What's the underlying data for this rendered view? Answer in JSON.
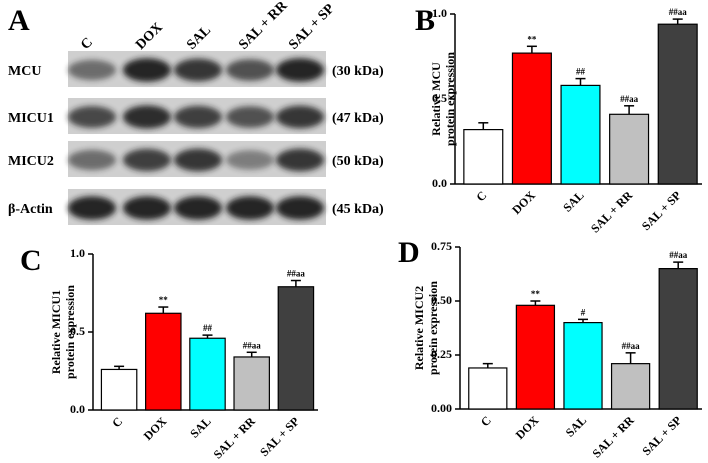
{
  "blot": {
    "panel_label": "A",
    "lanes": [
      "C",
      "DOX",
      "SAL",
      "SAL + RR",
      "SAL + SP"
    ],
    "rows": [
      {
        "name": "MCU",
        "size": "(30 kDa)"
      },
      {
        "name": "MICU1",
        "size": "(47 kDa)"
      },
      {
        "name": "MICU2",
        "size": "(50 kDa)"
      },
      {
        "name": "β-Actin",
        "size": "(45 kDa)"
      }
    ]
  },
  "chart_data": [
    {
      "type": "bar",
      "panel_label": "B",
      "ylabel": [
        "Relative MCU",
        "protein expression"
      ],
      "categories": [
        "C",
        "DOX",
        "SAL",
        "SAL + RR",
        "SAL + SP"
      ],
      "values": [
        0.32,
        0.77,
        0.58,
        0.41,
        0.94
      ],
      "errors": [
        0.04,
        0.04,
        0.04,
        0.05,
        0.03
      ],
      "annotations": [
        null,
        "**",
        "##",
        "##aa",
        "##aa"
      ],
      "colors": [
        "#ffffff",
        "#ff0000",
        "#00ffff",
        "#c0c0c0",
        "#404040"
      ],
      "ylim": [
        0,
        1
      ],
      "yticks": [
        {
          "value": 0,
          "label": "0.0"
        },
        0.5,
        {
          "value": 1,
          "label": "1.0"
        }
      ]
    },
    {
      "type": "bar",
      "panel_label": "C",
      "ylabel": [
        "Relative MICU1",
        "protein expression"
      ],
      "categories": [
        "C",
        "DOX",
        "SAL",
        "SAL + RR",
        "SAL + SP"
      ],
      "values": [
        0.26,
        0.62,
        0.46,
        0.34,
        0.79
      ],
      "errors": [
        0.02,
        0.04,
        0.02,
        0.03,
        0.04
      ],
      "annotations": [
        null,
        "**",
        "##",
        "##aa",
        "##aa"
      ],
      "colors": [
        "#ffffff",
        "#ff0000",
        "#00ffff",
        "#c0c0c0",
        "#404040"
      ],
      "ylim": [
        0,
        1
      ],
      "yticks": [
        {
          "value": 0,
          "label": "0.0"
        },
        0.5,
        {
          "value": 1,
          "label": "1.0"
        }
      ]
    },
    {
      "type": "bar",
      "panel_label": "D",
      "ylabel": [
        "Relative MICU2",
        "protein expression"
      ],
      "categories": [
        "C",
        "DOX",
        "SAL",
        "SAL + RR",
        "SAL + SP"
      ],
      "values": [
        0.19,
        0.48,
        0.4,
        0.21,
        0.65
      ],
      "errors": [
        0.02,
        0.02,
        0.015,
        0.05,
        0.03
      ],
      "annotations": [
        null,
        "**",
        "#",
        "##aa",
        "##aa"
      ],
      "colors": [
        "#ffffff",
        "#ff0000",
        "#00ffff",
        "#c0c0c0",
        "#404040"
      ],
      "ylim": [
        0,
        0.75
      ],
      "yticks": [
        {
          "value": 0,
          "label": "0.00"
        },
        {
          "value": 0.25,
          "label": "0.25"
        },
        {
          "value": 0.5,
          "label": "0.50"
        },
        0.75
      ]
    }
  ]
}
